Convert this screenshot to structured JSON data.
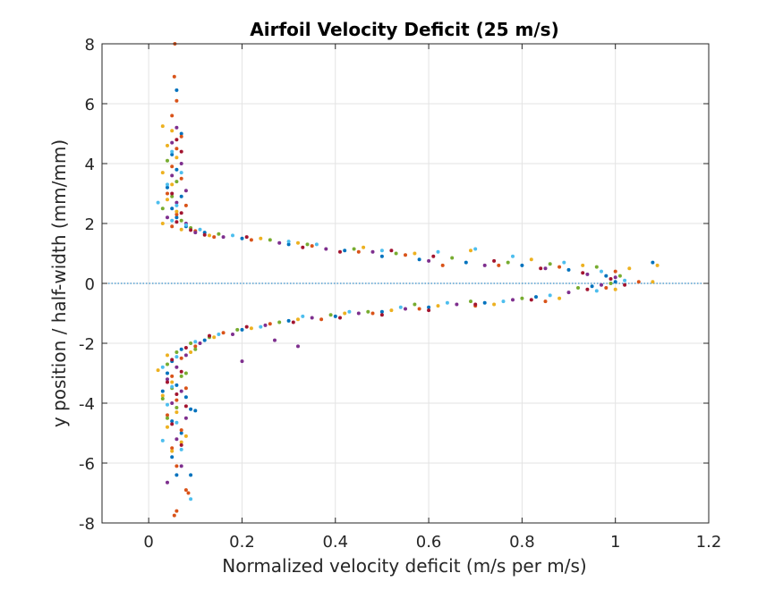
{
  "chart_data": {
    "type": "scatter",
    "title": "Airfoil Velocity Deficit (25 m/s)",
    "xlabel": "Normalized velocity deficit (m/s per m/s)",
    "ylabel": "y position / half-width (mm/mm)",
    "xlim": [
      -0.1,
      1.2
    ],
    "ylim": [
      -8,
      8
    ],
    "xticks": [
      0,
      0.2,
      0.4,
      0.6,
      0.8,
      1,
      1.2
    ],
    "xtick_labels": [
      "0",
      "0.2",
      "0.4",
      "0.6",
      "0.8",
      "1",
      "1.2"
    ],
    "yticks": [
      -8,
      -6,
      -4,
      -2,
      0,
      2,
      4,
      6,
      8
    ],
    "ytick_labels": [
      "-8",
      "-6",
      "-4",
      "-2",
      "0",
      "2",
      "4",
      "6",
      "8"
    ],
    "grid": true,
    "reference_line": {
      "y": 0,
      "style": "dotted",
      "color": "#0072BD"
    },
    "colors": [
      "#0072BD",
      "#D95319",
      "#EDB120",
      "#7E2F8E",
      "#77AC30",
      "#4DBEEE",
      "#A2142F"
    ],
    "series": [
      {
        "color": "#0072BD",
        "points": [
          [
            0.06,
            6.45
          ],
          [
            0.07,
            5.0
          ],
          [
            0.05,
            4.3
          ],
          [
            0.06,
            3.8
          ],
          [
            0.04,
            3.2
          ],
          [
            0.07,
            2.9
          ],
          [
            0.05,
            2.5
          ],
          [
            0.06,
            2.2
          ],
          [
            0.08,
            1.9
          ],
          [
            0.12,
            1.7
          ],
          [
            0.2,
            1.5
          ],
          [
            0.3,
            1.3
          ],
          [
            0.42,
            1.1
          ],
          [
            0.5,
            0.9
          ],
          [
            0.58,
            0.8
          ],
          [
            0.68,
            0.7
          ],
          [
            0.8,
            0.6
          ],
          [
            0.9,
            0.45
          ],
          [
            0.98,
            0.25
          ],
          [
            1.0,
            0.05
          ],
          [
            1.08,
            0.7
          ],
          [
            0.95,
            -0.1
          ],
          [
            0.83,
            -0.45
          ],
          [
            0.72,
            -0.65
          ],
          [
            0.6,
            -0.8
          ],
          [
            0.5,
            -0.95
          ],
          [
            0.4,
            -1.1
          ],
          [
            0.3,
            -1.25
          ],
          [
            0.2,
            -1.55
          ],
          [
            0.12,
            -1.9
          ],
          [
            0.07,
            -2.2
          ],
          [
            0.05,
            -2.6
          ],
          [
            0.04,
            -3.0
          ],
          [
            0.06,
            -3.4
          ],
          [
            0.08,
            -3.8
          ],
          [
            0.09,
            -4.2
          ],
          [
            0.05,
            -4.6
          ],
          [
            0.07,
            -5.0
          ],
          [
            0.05,
            -5.8
          ],
          [
            0.06,
            -6.4
          ],
          [
            0.09,
            -6.4
          ],
          [
            0.03,
            -3.6
          ],
          [
            0.1,
            -4.25
          ]
        ]
      },
      {
        "color": "#D95319",
        "points": [
          [
            0.056,
            8.0
          ],
          [
            0.055,
            6.9
          ],
          [
            0.06,
            6.1
          ],
          [
            0.05,
            5.6
          ],
          [
            0.07,
            4.9
          ],
          [
            0.06,
            4.5
          ],
          [
            0.05,
            3.9
          ],
          [
            0.07,
            3.5
          ],
          [
            0.04,
            3.0
          ],
          [
            0.08,
            2.6
          ],
          [
            0.06,
            2.3
          ],
          [
            0.05,
            1.9
          ],
          [
            0.1,
            1.75
          ],
          [
            0.14,
            1.55
          ],
          [
            0.22,
            1.45
          ],
          [
            0.35,
            1.25
          ],
          [
            0.45,
            1.05
          ],
          [
            0.55,
            0.95
          ],
          [
            0.63,
            0.6
          ],
          [
            0.75,
            0.6
          ],
          [
            0.88,
            0.55
          ],
          [
            1.0,
            0.4
          ],
          [
            1.05,
            0.05
          ],
          [
            0.98,
            -0.15
          ],
          [
            0.85,
            -0.6
          ],
          [
            0.7,
            -0.75
          ],
          [
            0.58,
            -0.85
          ],
          [
            0.48,
            -1.0
          ],
          [
            0.37,
            -1.2
          ],
          [
            0.26,
            -1.35
          ],
          [
            0.16,
            -1.65
          ],
          [
            0.1,
            -2.1
          ],
          [
            0.07,
            -2.5
          ],
          [
            0.05,
            -3.1
          ],
          [
            0.08,
            -3.5
          ],
          [
            0.06,
            -3.9
          ],
          [
            0.04,
            -4.4
          ],
          [
            0.07,
            -4.9
          ],
          [
            0.05,
            -5.5
          ],
          [
            0.06,
            -6.1
          ],
          [
            0.08,
            -6.9
          ],
          [
            0.06,
            -7.6
          ],
          [
            0.055,
            -7.75
          ],
          [
            0.085,
            -7.0
          ]
        ]
      },
      {
        "color": "#EDB120",
        "points": [
          [
            0.03,
            5.25
          ],
          [
            0.05,
            5.1
          ],
          [
            0.04,
            4.6
          ],
          [
            0.06,
            4.2
          ],
          [
            0.03,
            3.7
          ],
          [
            0.05,
            3.3
          ],
          [
            0.04,
            2.8
          ],
          [
            0.06,
            2.4
          ],
          [
            0.03,
            2.0
          ],
          [
            0.07,
            1.8
          ],
          [
            0.13,
            1.6
          ],
          [
            0.24,
            1.5
          ],
          [
            0.32,
            1.35
          ],
          [
            0.46,
            1.2
          ],
          [
            0.57,
            1.0
          ],
          [
            0.69,
            1.1
          ],
          [
            0.82,
            0.8
          ],
          [
            0.93,
            0.6
          ],
          [
            1.03,
            0.5
          ],
          [
            1.09,
            0.6
          ],
          [
            1.0,
            -0.2
          ],
          [
            0.88,
            -0.5
          ],
          [
            0.74,
            -0.7
          ],
          [
            0.62,
            -0.75
          ],
          [
            0.52,
            -0.9
          ],
          [
            0.42,
            -1.0
          ],
          [
            0.32,
            -1.2
          ],
          [
            0.22,
            -1.5
          ],
          [
            0.14,
            -1.8
          ],
          [
            0.09,
            -2.3
          ],
          [
            0.04,
            -2.4
          ],
          [
            0.02,
            -2.9
          ],
          [
            0.05,
            -3.3
          ],
          [
            0.03,
            -3.75
          ],
          [
            0.06,
            -4.3
          ],
          [
            0.04,
            -4.8
          ],
          [
            0.07,
            -5.3
          ],
          [
            0.05,
            -5.6
          ],
          [
            0.08,
            -5.1
          ],
          [
            1.08,
            0.05
          ]
        ]
      },
      {
        "color": "#7E2F8E",
        "points": [
          [
            0.06,
            5.2
          ],
          [
            0.05,
            4.7
          ],
          [
            0.07,
            4.0
          ],
          [
            0.05,
            3.6
          ],
          [
            0.08,
            3.1
          ],
          [
            0.06,
            2.7
          ],
          [
            0.04,
            2.2
          ],
          [
            0.08,
            2.0
          ],
          [
            0.1,
            1.7
          ],
          [
            0.16,
            1.55
          ],
          [
            0.28,
            1.35
          ],
          [
            0.38,
            1.15
          ],
          [
            0.48,
            1.05
          ],
          [
            0.6,
            0.75
          ],
          [
            0.72,
            0.6
          ],
          [
            0.85,
            0.5
          ],
          [
            0.94,
            0.3
          ],
          [
            1.0,
            0.2
          ],
          [
            0.97,
            -0.05
          ],
          [
            0.9,
            -0.3
          ],
          [
            0.78,
            -0.55
          ],
          [
            0.66,
            -0.7
          ],
          [
            0.55,
            -0.85
          ],
          [
            0.45,
            -1.0
          ],
          [
            0.35,
            -1.15
          ],
          [
            0.25,
            -1.4
          ],
          [
            0.18,
            -1.7
          ],
          [
            0.11,
            -2.0
          ],
          [
            0.08,
            -2.4
          ],
          [
            0.06,
            -2.8
          ],
          [
            0.04,
            -3.2
          ],
          [
            0.07,
            -3.6
          ],
          [
            0.05,
            -4.0
          ],
          [
            0.08,
            -4.5
          ],
          [
            0.06,
            -5.2
          ],
          [
            0.07,
            -6.1
          ],
          [
            0.04,
            -6.65
          ],
          [
            0.2,
            -2.6
          ],
          [
            0.32,
            -2.1
          ],
          [
            0.27,
            -1.9
          ]
        ]
      },
      {
        "color": "#77AC30",
        "points": [
          [
            0.04,
            4.1
          ],
          [
            0.06,
            3.4
          ],
          [
            0.05,
            2.9
          ],
          [
            0.03,
            2.5
          ],
          [
            0.07,
            2.1
          ],
          [
            0.09,
            1.85
          ],
          [
            0.15,
            1.65
          ],
          [
            0.26,
            1.45
          ],
          [
            0.34,
            1.3
          ],
          [
            0.44,
            1.15
          ],
          [
            0.53,
            1.0
          ],
          [
            0.65,
            0.85
          ],
          [
            0.77,
            0.7
          ],
          [
            0.86,
            0.65
          ],
          [
            0.96,
            0.55
          ],
          [
            1.01,
            0.25
          ],
          [
            0.99,
            0.0
          ],
          [
            0.92,
            -0.15
          ],
          [
            0.8,
            -0.5
          ],
          [
            0.69,
            -0.6
          ],
          [
            0.57,
            -0.7
          ],
          [
            0.47,
            -0.95
          ],
          [
            0.39,
            -1.05
          ],
          [
            0.28,
            -1.3
          ],
          [
            0.19,
            -1.55
          ],
          [
            0.13,
            -1.8
          ],
          [
            0.09,
            -2.0
          ],
          [
            0.06,
            -2.3
          ],
          [
            0.04,
            -2.7
          ],
          [
            0.07,
            -3.1
          ],
          [
            0.05,
            -3.5
          ],
          [
            0.03,
            -3.85
          ],
          [
            0.06,
            -4.15
          ],
          [
            0.04,
            -4.5
          ],
          [
            0.08,
            -3.0
          ],
          [
            0.1,
            -2.2
          ]
        ]
      },
      {
        "color": "#4DBEEE",
        "points": [
          [
            0.05,
            4.4
          ],
          [
            0.07,
            3.7
          ],
          [
            0.04,
            3.3
          ],
          [
            0.06,
            2.6
          ],
          [
            0.02,
            2.7
          ],
          [
            0.05,
            2.1
          ],
          [
            0.08,
            1.95
          ],
          [
            0.11,
            1.8
          ],
          [
            0.18,
            1.6
          ],
          [
            0.3,
            1.4
          ],
          [
            0.36,
            1.3
          ],
          [
            0.5,
            1.1
          ],
          [
            0.62,
            1.05
          ],
          [
            0.7,
            1.15
          ],
          [
            0.78,
            0.9
          ],
          [
            0.89,
            0.7
          ],
          [
            0.97,
            0.4
          ],
          [
            1.02,
            0.1
          ],
          [
            0.96,
            -0.25
          ],
          [
            0.86,
            -0.4
          ],
          [
            0.76,
            -0.6
          ],
          [
            0.64,
            -0.65
          ],
          [
            0.54,
            -0.8
          ],
          [
            0.43,
            -0.95
          ],
          [
            0.33,
            -1.1
          ],
          [
            0.24,
            -1.45
          ],
          [
            0.15,
            -1.7
          ],
          [
            0.1,
            -1.95
          ],
          [
            0.06,
            -2.45
          ],
          [
            0.03,
            -2.8
          ],
          [
            0.05,
            -3.45
          ],
          [
            0.04,
            -4.05
          ],
          [
            0.06,
            -4.65
          ],
          [
            0.03,
            -5.25
          ],
          [
            0.09,
            -7.2
          ],
          [
            0.07,
            -5.55
          ]
        ]
      },
      {
        "color": "#A2142F",
        "points": [
          [
            0.06,
            4.8
          ],
          [
            0.07,
            4.4
          ],
          [
            0.05,
            3.0
          ],
          [
            0.07,
            2.35
          ],
          [
            0.06,
            2.05
          ],
          [
            0.09,
            1.78
          ],
          [
            0.12,
            1.62
          ],
          [
            0.21,
            1.55
          ],
          [
            0.33,
            1.2
          ],
          [
            0.41,
            1.05
          ],
          [
            0.52,
            1.1
          ],
          [
            0.61,
            0.9
          ],
          [
            0.74,
            0.75
          ],
          [
            0.84,
            0.5
          ],
          [
            0.93,
            0.35
          ],
          [
            0.99,
            0.15
          ],
          [
            1.02,
            -0.05
          ],
          [
            0.94,
            -0.2
          ],
          [
            0.82,
            -0.55
          ],
          [
            0.7,
            -0.7
          ],
          [
            0.6,
            -0.9
          ],
          [
            0.5,
            -1.05
          ],
          [
            0.41,
            -1.15
          ],
          [
            0.31,
            -1.3
          ],
          [
            0.21,
            -1.45
          ],
          [
            0.13,
            -1.75
          ],
          [
            0.08,
            -2.15
          ],
          [
            0.05,
            -2.55
          ],
          [
            0.07,
            -2.95
          ],
          [
            0.04,
            -3.3
          ],
          [
            0.06,
            -3.7
          ],
          [
            0.08,
            -4.1
          ],
          [
            0.05,
            -4.7
          ],
          [
            0.07,
            -5.4
          ]
        ]
      }
    ]
  }
}
